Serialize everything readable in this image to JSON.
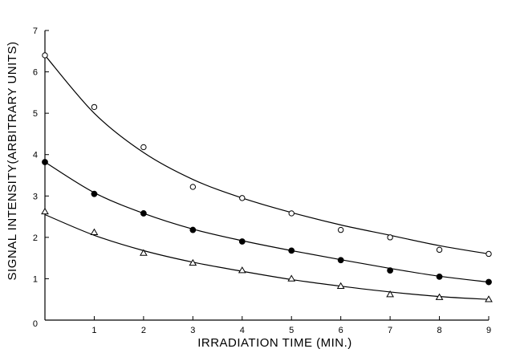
{
  "chart_data": {
    "type": "scatter",
    "title": "",
    "xlabel": "IRRADIATION TIME (MIN.)",
    "ylabel": "SIGNAL INTENSITY(ARBITRARY UNITS)",
    "xlim": [
      0,
      9
    ],
    "ylim": [
      0,
      7
    ],
    "xticks": [
      1,
      2,
      3,
      4,
      5,
      6,
      7,
      8,
      9
    ],
    "yticks": [
      1,
      2,
      3,
      4,
      5,
      6,
      7
    ],
    "origin_label": "0",
    "grid": false,
    "legend": "none",
    "series": [
      {
        "marker": "open-circle",
        "x": [
          0,
          1,
          2,
          3,
          4,
          5,
          6,
          7,
          8,
          9
        ],
        "y": [
          6.4,
          5.15,
          4.18,
          3.22,
          2.95,
          2.58,
          2.18,
          2.0,
          1.7,
          1.6
        ],
        "fit": [
          6.4,
          5.0,
          4.05,
          3.4,
          2.95,
          2.6,
          2.3,
          2.05,
          1.8,
          1.6
        ]
      },
      {
        "marker": "filled-circle",
        "x": [
          0,
          1,
          2,
          3,
          4,
          5,
          6,
          7,
          8,
          9
        ],
        "y": [
          3.82,
          3.05,
          2.58,
          2.18,
          1.9,
          1.68,
          1.45,
          1.2,
          1.05,
          0.92
        ],
        "fit": [
          3.82,
          3.08,
          2.58,
          2.2,
          1.92,
          1.68,
          1.46,
          1.25,
          1.06,
          0.92
        ]
      },
      {
        "marker": "open-triangle",
        "x": [
          0,
          1,
          2,
          3,
          4,
          5,
          6,
          7,
          8,
          9
        ],
        "y": [
          2.62,
          2.12,
          1.62,
          1.38,
          1.2,
          1.0,
          0.82,
          0.62,
          0.55,
          0.5
        ],
        "fit": [
          2.55,
          2.05,
          1.68,
          1.4,
          1.18,
          0.98,
          0.82,
          0.68,
          0.57,
          0.5
        ]
      }
    ]
  }
}
